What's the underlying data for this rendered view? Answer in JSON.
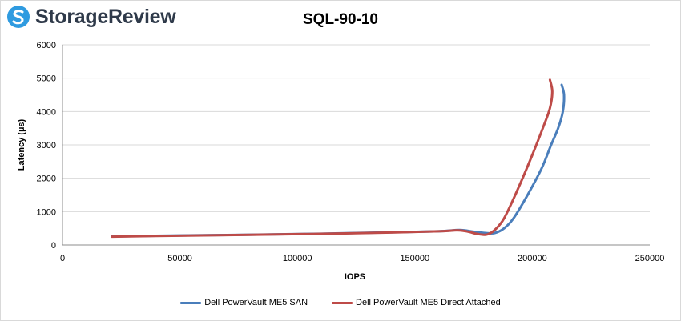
{
  "logo": {
    "text": "StorageReview",
    "brand_color": "#2f9be0",
    "icon": "storagereview-logo-icon"
  },
  "chart_data": {
    "type": "line",
    "title": "SQL-90-10",
    "xlabel": "IOPS",
    "ylabel": "Latency (µs)",
    "xlim": [
      0,
      250000
    ],
    "ylim": [
      0,
      6000
    ],
    "xticks": [
      0,
      50000,
      100000,
      150000,
      200000,
      250000
    ],
    "yticks": [
      0,
      1000,
      2000,
      3000,
      4000,
      5000,
      6000
    ],
    "grid": "horizontal",
    "legend_position": "bottom",
    "series": [
      {
        "name": "Dell PowerVault ME5 SAN",
        "color": "#4a7ebb",
        "points": [
          [
            21000,
            255
          ],
          [
            50000,
            285
          ],
          [
            80000,
            310
          ],
          [
            110000,
            340
          ],
          [
            140000,
            380
          ],
          [
            160000,
            410
          ],
          [
            169000,
            450
          ],
          [
            175000,
            400
          ],
          [
            180000,
            360
          ],
          [
            184000,
            360
          ],
          [
            188000,
            500
          ],
          [
            192000,
            800
          ],
          [
            198000,
            1500
          ],
          [
            204000,
            2300
          ],
          [
            208000,
            3000
          ],
          [
            211000,
            3500
          ],
          [
            213000,
            4000
          ],
          [
            213500,
            4500
          ],
          [
            212500,
            4800
          ]
        ]
      },
      {
        "name": "Dell PowerVault ME5 Direct Attached",
        "color": "#be4b48",
        "points": [
          [
            21000,
            250
          ],
          [
            50000,
            280
          ],
          [
            80000,
            305
          ],
          [
            110000,
            335
          ],
          [
            140000,
            375
          ],
          [
            160000,
            410
          ],
          [
            168000,
            440
          ],
          [
            172000,
            410
          ],
          [
            176000,
            340
          ],
          [
            179000,
            310
          ],
          [
            181000,
            320
          ],
          [
            184000,
            450
          ],
          [
            188000,
            800
          ],
          [
            194000,
            1700
          ],
          [
            200000,
            2700
          ],
          [
            205000,
            3600
          ],
          [
            207500,
            4100
          ],
          [
            208500,
            4600
          ],
          [
            207500,
            4950
          ]
        ]
      }
    ]
  }
}
